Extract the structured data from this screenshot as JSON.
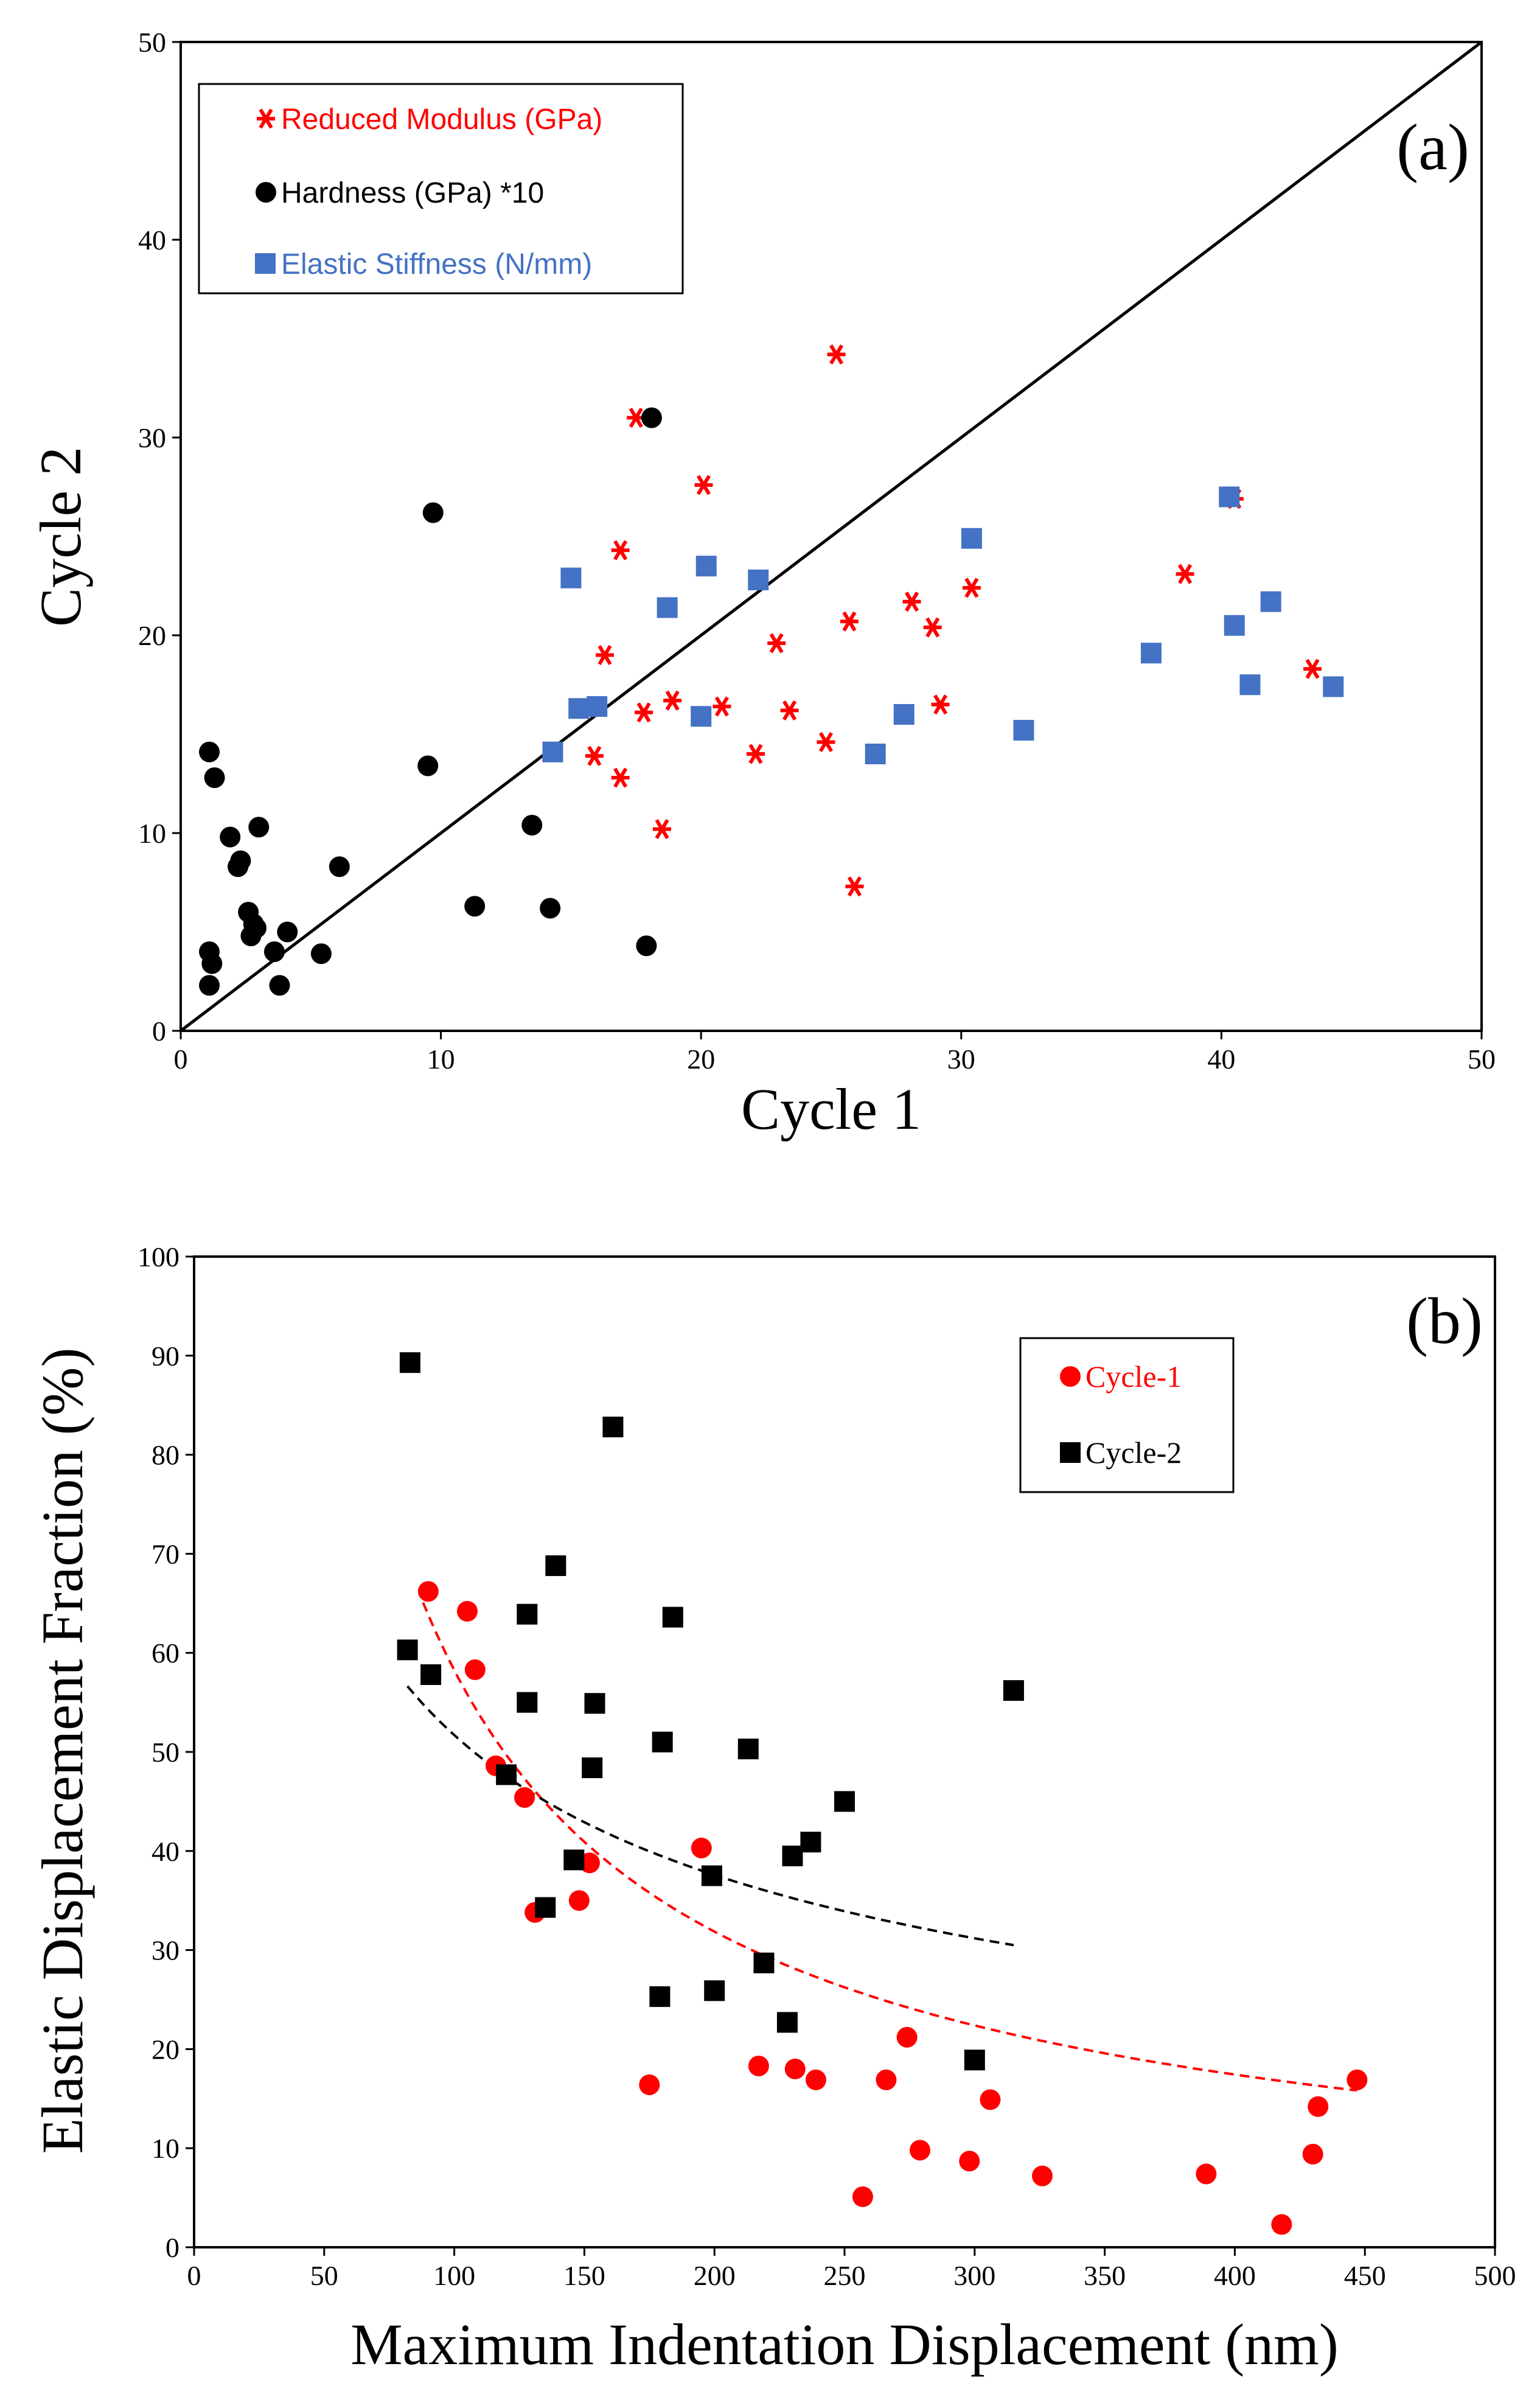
{
  "colors": {
    "red": "#ff0000",
    "black": "#000000",
    "blue": "#4472c4",
    "axis": "#000000"
  },
  "chart_data": [
    {
      "panel": "(a)",
      "type": "scatter",
      "xlabel": "Cycle 1",
      "ylabel": "Cycle 2",
      "xlim": [
        0,
        50
      ],
      "ylim": [
        0,
        50
      ],
      "xticks": [
        0,
        10,
        20,
        30,
        40,
        50
      ],
      "yticks": [
        0,
        10,
        20,
        30,
        40,
        50
      ],
      "grid": false,
      "legend_position": "top-left",
      "reference_line": {
        "label": "y = x",
        "from": [
          0,
          0
        ],
        "to": [
          50,
          50
        ]
      },
      "series": [
        {
          "name": "Reduced Modulus (GPa)",
          "marker": "asterisk",
          "color": "#ff0000",
          "x": [
            17.5,
            25.2,
            20.1,
            16.9,
            16.3,
            15.9,
            17.8,
            16.9,
            18.5,
            18.9,
            20.8,
            22.1,
            22.9,
            23.4,
            24.8,
            25.7,
            25.9,
            28.1,
            28.9,
            29.2,
            30.4,
            38.6,
            40.5,
            43.5
          ],
          "y": [
            31.0,
            34.2,
            27.6,
            24.3,
            19.0,
            13.9,
            16.1,
            12.8,
            10.2,
            16.7,
            16.4,
            14.0,
            19.6,
            16.2,
            14.6,
            20.7,
            7.3,
            21.7,
            20.4,
            16.5,
            22.4,
            23.1,
            26.9,
            18.3
          ]
        },
        {
          "name": "Hardness (GPa) *10",
          "marker": "circle",
          "color": "#000000",
          "x": [
            1.1,
            1.3,
            1.9,
            2.2,
            2.3,
            2.6,
            2.7,
            2.9,
            2.8,
            3.0,
            1.1,
            1.2,
            1.1,
            3.6,
            3.8,
            4.1,
            5.4,
            6.1,
            9.5,
            9.7,
            11.3,
            13.5,
            14.2,
            17.9,
            18.1
          ],
          "y": [
            14.1,
            12.8,
            9.8,
            8.3,
            8.6,
            6.0,
            4.8,
            5.2,
            5.4,
            10.3,
            4.0,
            3.4,
            2.3,
            4.0,
            2.3,
            5.0,
            3.9,
            8.3,
            13.4,
            26.2,
            6.3,
            10.4,
            6.2,
            4.3,
            31.0
          ]
        },
        {
          "name": "Elastic Stiffness (N/mm)",
          "marker": "square",
          "color": "#4472c4",
          "x": [
            14.3,
            15.0,
            15.3,
            16.0,
            18.7,
            20.0,
            20.2,
            22.2,
            26.7,
            27.8,
            30.4,
            32.4,
            37.3,
            40.3,
            40.5,
            41.1,
            41.9,
            44.3
          ],
          "y": [
            14.1,
            22.9,
            16.3,
            16.4,
            21.4,
            15.9,
            23.5,
            22.8,
            14.0,
            16.0,
            24.9,
            15.2,
            19.1,
            27.0,
            20.5,
            17.5,
            21.7,
            17.4
          ]
        }
      ]
    },
    {
      "panel": "(b)",
      "type": "scatter",
      "xlabel": "Maximum Indentation Displacement (nm)",
      "ylabel": "Elastic Displacement Fraction (%)",
      "xlim": [
        0,
        500
      ],
      "ylim": [
        0,
        100
      ],
      "xticks": [
        0,
        50,
        100,
        150,
        200,
        250,
        300,
        350,
        400,
        450,
        500
      ],
      "yticks": [
        0,
        10,
        20,
        30,
        40,
        50,
        60,
        70,
        80,
        90,
        100
      ],
      "grid": false,
      "legend_position": "top-right",
      "series": [
        {
          "name": "Cycle-1",
          "marker": "circle",
          "color": "#ff0000",
          "x": [
            90,
            105,
            108,
            116,
            127,
            131,
            148,
            152,
            175,
            195,
            217,
            231,
            239,
            257,
            266,
            274,
            279,
            298,
            306,
            326,
            389,
            418,
            430,
            432,
            447
          ],
          "y": [
            66.2,
            64.2,
            58.3,
            48.6,
            45.4,
            33.8,
            35.0,
            38.8,
            16.4,
            40.3,
            18.3,
            18.0,
            16.9,
            5.1,
            16.9,
            21.2,
            9.8,
            8.7,
            14.9,
            7.2,
            7.4,
            2.3,
            9.4,
            14.2,
            16.9
          ]
        },
        {
          "name": "Cycle-2",
          "marker": "square",
          "color": "#000000",
          "x": [
            83,
            82,
            91,
            120,
            128,
            128,
            135,
            139,
            146,
            153,
            154,
            161,
            179,
            180,
            184,
            199,
            200,
            213,
            219,
            228,
            230,
            237,
            250,
            300,
            315
          ],
          "y": [
            89.3,
            60.3,
            57.8,
            47.7,
            63.9,
            55.0,
            34.3,
            68.8,
            39.1,
            48.4,
            54.9,
            82.8,
            25.3,
            51.0,
            63.6,
            37.5,
            25.9,
            50.3,
            28.7,
            22.7,
            39.5,
            40.9,
            45.0,
            18.9,
            56.2
          ]
        }
      ],
      "trend_lines": [
        {
          "series": "Cycle-1",
          "style": "dashed",
          "color": "#ff0000",
          "a": 3200,
          "b": 0.87,
          "x_range": [
            88,
            447
          ]
        },
        {
          "series": "Cycle-2",
          "style": "dashed",
          "color": "#000000",
          "a": 430,
          "b": 0.46,
          "x_range": [
            82,
            315
          ]
        }
      ]
    }
  ]
}
